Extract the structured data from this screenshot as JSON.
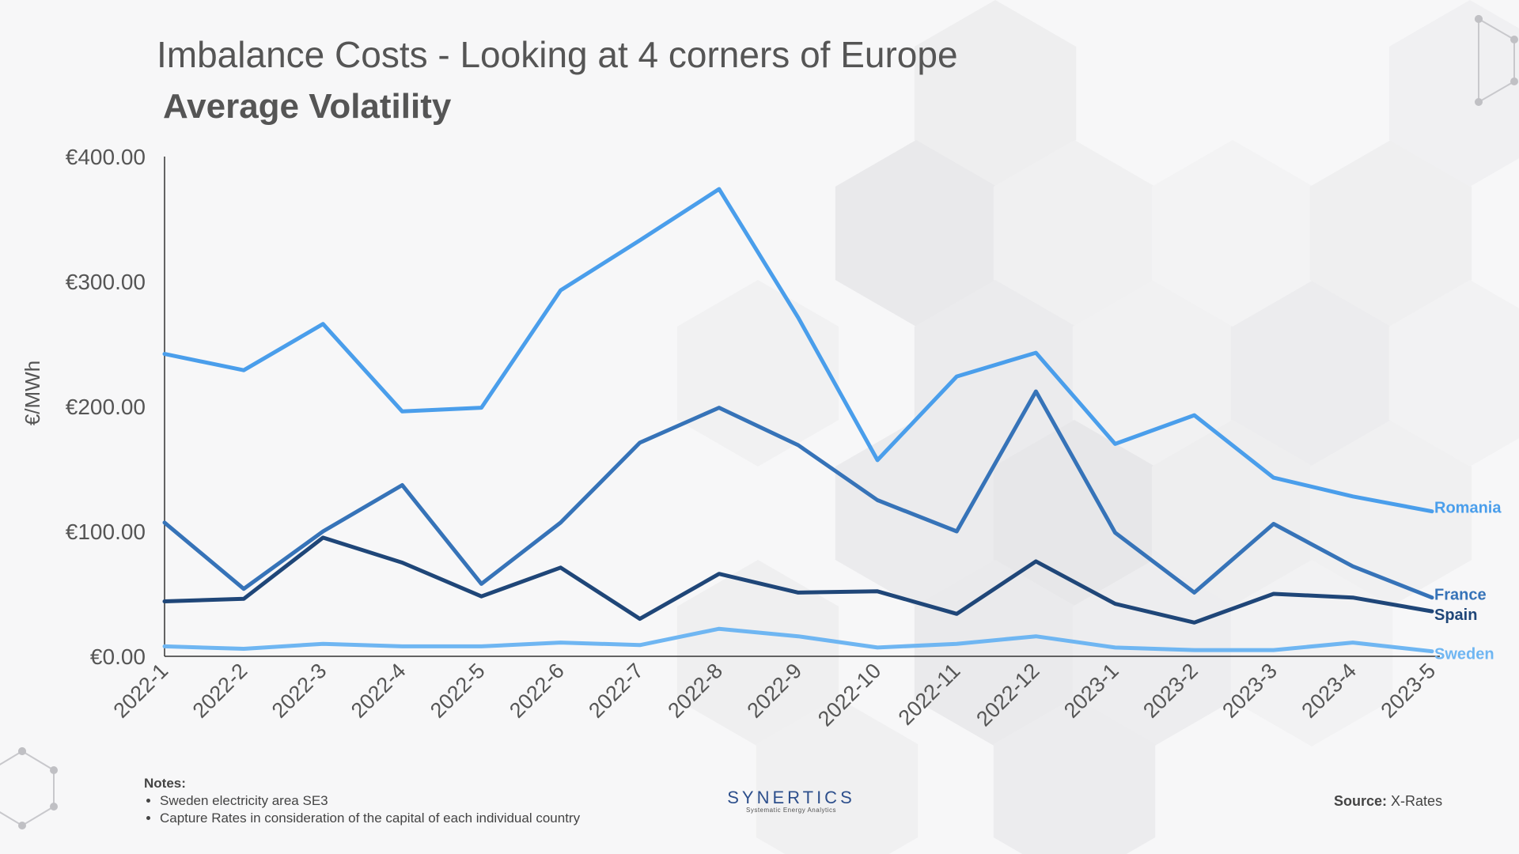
{
  "header": {
    "title": "Imbalance Costs - Looking at 4 corners of Europe",
    "subtitle": "Average Volatility"
  },
  "chart_data": {
    "type": "line",
    "title": "Average Volatility",
    "xlabel": "",
    "ylabel": "€/MWh",
    "ylim": [
      0,
      400
    ],
    "yticks": [
      0,
      100,
      200,
      300,
      400
    ],
    "ytick_labels": [
      "€0.00",
      "€100.00",
      "€200.00",
      "€300.00",
      "€400.00"
    ],
    "grid": false,
    "legend": "direct labels at line ends",
    "categories": [
      "2022-1",
      "2022-2",
      "2022-3",
      "2022-4",
      "2022-5",
      "2022-6",
      "2022-7",
      "2022-8",
      "2022-9",
      "2022-10",
      "2022-11",
      "2022-12",
      "2023-1",
      "2023-2",
      "2023-3",
      "2023-4",
      "2023-5"
    ],
    "series": [
      {
        "name": "Romania",
        "color": "#4a9eeb",
        "values": [
          242,
          229,
          266,
          196,
          199,
          293,
          333,
          374,
          271,
          157,
          224,
          243,
          170,
          193,
          143,
          128,
          116
        ]
      },
      {
        "name": "France",
        "color": "#3673b8",
        "values": [
          107,
          54,
          100,
          137,
          58,
          107,
          171,
          199,
          169,
          125,
          100,
          212,
          99,
          51,
          106,
          72,
          47
        ]
      },
      {
        "name": "Spain",
        "color": "#1f4678",
        "values": [
          44,
          46,
          95,
          75,
          48,
          71,
          30,
          66,
          51,
          52,
          34,
          76,
          42,
          27,
          50,
          47,
          36
        ]
      },
      {
        "name": "Sweden",
        "color": "#6fb6f2",
        "values": [
          8,
          6,
          10,
          8,
          8,
          11,
          9,
          22,
          16,
          7,
          10,
          16,
          7,
          5,
          5,
          11,
          4
        ]
      }
    ]
  },
  "notes": {
    "heading": "Notes:",
    "items": [
      "Sweden electricity area SE3",
      "Capture Rates in consideration of the capital of each individual country"
    ]
  },
  "logo": {
    "name": "SYNERTICS",
    "tagline": "Systematic Energy Analytics"
  },
  "source": {
    "label": "Source:",
    "value": "X-Rates"
  }
}
